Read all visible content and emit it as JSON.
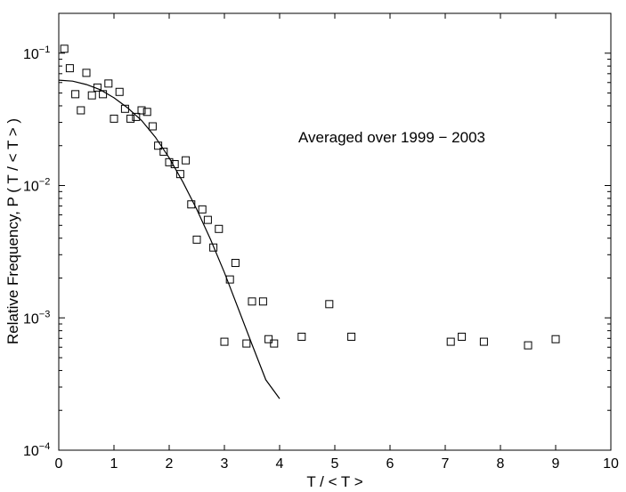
{
  "chart_data": {
    "type": "scatter",
    "x_axis": {
      "label": "T / < T >",
      "range": [
        0,
        10
      ],
      "ticks": [
        {
          "value": 0,
          "label": "0"
        },
        {
          "value": 1,
          "label": "1"
        },
        {
          "value": 2,
          "label": "2"
        },
        {
          "value": 3,
          "label": "3"
        },
        {
          "value": 4,
          "label": "4"
        },
        {
          "value": 5,
          "label": "5"
        },
        {
          "value": 6,
          "label": "6"
        },
        {
          "value": 7,
          "label": "7"
        },
        {
          "value": 8,
          "label": "8"
        },
        {
          "value": 9,
          "label": "9"
        },
        {
          "value": 10,
          "label": "10"
        }
      ]
    },
    "y_axis": {
      "label": "Relative Frequency, P ( T / < T > )",
      "scale": "log",
      "range": [
        0.0001,
        0.2
      ],
      "ticks": [
        {
          "value": 0.1,
          "base": "10",
          "exp": "−1"
        },
        {
          "value": 0.01,
          "base": "10",
          "exp": "−2"
        },
        {
          "value": 0.001,
          "base": "10",
          "exp": "−3"
        },
        {
          "value": 0.0001,
          "base": "10",
          "exp": "−4"
        }
      ]
    },
    "grid": false,
    "annotation": "Averaged over 1999 − 2003",
    "series": [
      {
        "type": "scatter",
        "marker": "open-square",
        "points": [
          {
            "x": 0.1,
            "y": 0.108
          },
          {
            "x": 0.2,
            "y": 0.077
          },
          {
            "x": 0.3,
            "y": 0.049
          },
          {
            "x": 0.4,
            "y": 0.037
          },
          {
            "x": 0.5,
            "y": 0.071
          },
          {
            "x": 0.6,
            "y": 0.048
          },
          {
            "x": 0.7,
            "y": 0.055
          },
          {
            "x": 0.8,
            "y": 0.049
          },
          {
            "x": 0.9,
            "y": 0.059
          },
          {
            "x": 1.0,
            "y": 0.032
          },
          {
            "x": 1.1,
            "y": 0.051
          },
          {
            "x": 1.2,
            "y": 0.038
          },
          {
            "x": 1.3,
            "y": 0.032
          },
          {
            "x": 1.4,
            "y": 0.033
          },
          {
            "x": 1.5,
            "y": 0.037
          },
          {
            "x": 1.6,
            "y": 0.036
          },
          {
            "x": 1.7,
            "y": 0.028
          },
          {
            "x": 1.8,
            "y": 0.02
          },
          {
            "x": 1.9,
            "y": 0.018
          },
          {
            "x": 2.0,
            "y": 0.015
          },
          {
            "x": 2.1,
            "y": 0.0145
          },
          {
            "x": 2.2,
            "y": 0.0122
          },
          {
            "x": 2.3,
            "y": 0.0155
          },
          {
            "x": 2.4,
            "y": 0.0072
          },
          {
            "x": 2.5,
            "y": 0.0039
          },
          {
            "x": 2.6,
            "y": 0.0066
          },
          {
            "x": 2.7,
            "y": 0.0055
          },
          {
            "x": 2.8,
            "y": 0.0034
          },
          {
            "x": 2.9,
            "y": 0.0047
          },
          {
            "x": 3.0,
            "y": 0.00066
          },
          {
            "x": 3.1,
            "y": 0.00195
          },
          {
            "x": 3.2,
            "y": 0.0026
          },
          {
            "x": 3.4,
            "y": 0.00064
          },
          {
            "x": 3.5,
            "y": 0.00133
          },
          {
            "x": 3.7,
            "y": 0.00133
          },
          {
            "x": 3.8,
            "y": 0.00069
          },
          {
            "x": 3.9,
            "y": 0.00064
          },
          {
            "x": 4.4,
            "y": 0.00072
          },
          {
            "x": 4.9,
            "y": 0.00127
          },
          {
            "x": 5.3,
            "y": 0.00072
          },
          {
            "x": 7.1,
            "y": 0.00066
          },
          {
            "x": 7.3,
            "y": 0.00072
          },
          {
            "x": 7.7,
            "y": 0.00066
          },
          {
            "x": 8.5,
            "y": 0.00062
          },
          {
            "x": 9.0,
            "y": 0.00069
          }
        ]
      },
      {
        "type": "line",
        "style": "solid",
        "points": [
          {
            "x": 0.0,
            "y": 0.0625
          },
          {
            "x": 0.25,
            "y": 0.0615
          },
          {
            "x": 0.5,
            "y": 0.058
          },
          {
            "x": 0.75,
            "y": 0.053
          },
          {
            "x": 1.0,
            "y": 0.046
          },
          {
            "x": 1.25,
            "y": 0.0385
          },
          {
            "x": 1.5,
            "y": 0.031
          },
          {
            "x": 1.75,
            "y": 0.0232
          },
          {
            "x": 2.0,
            "y": 0.0162
          },
          {
            "x": 2.25,
            "y": 0.0106
          },
          {
            "x": 2.5,
            "y": 0.0066
          },
          {
            "x": 2.75,
            "y": 0.0039
          },
          {
            "x": 3.0,
            "y": 0.0022
          },
          {
            "x": 3.25,
            "y": 0.00118
          },
          {
            "x": 3.5,
            "y": 0.00063
          },
          {
            "x": 3.75,
            "y": 0.00034
          },
          {
            "x": 4.0,
            "y": 0.000245
          }
        ]
      }
    ]
  }
}
